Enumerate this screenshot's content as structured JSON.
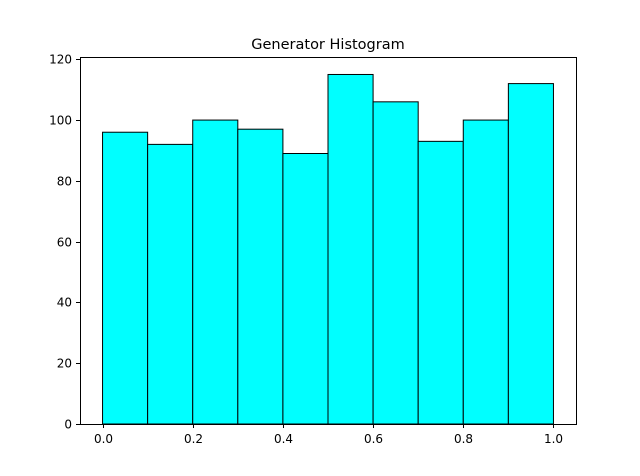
{
  "chart_data": {
    "type": "bar",
    "title": "Generator Histogram",
    "xlabel": "",
    "ylabel": "",
    "bin_edges": [
      0.0,
      0.1,
      0.2,
      0.3,
      0.4,
      0.5,
      0.6,
      0.7,
      0.8,
      0.9,
      1.0
    ],
    "values": [
      96,
      92,
      100,
      97,
      89,
      115,
      106,
      93,
      100,
      112
    ],
    "xlim": [
      -0.05,
      1.05
    ],
    "ylim": [
      0,
      120.75
    ],
    "xticks": [
      "0.0",
      "0.2",
      "0.4",
      "0.6",
      "0.8",
      "1.0"
    ],
    "xtick_values": [
      0.0,
      0.2,
      0.4,
      0.6,
      0.8,
      1.0
    ],
    "yticks": [
      "0",
      "20",
      "40",
      "60",
      "80",
      "100",
      "120"
    ],
    "ytick_values": [
      0,
      20,
      40,
      60,
      80,
      100,
      120
    ],
    "bar_color": "#00ffff",
    "edge_color": "#000000",
    "grid": false,
    "legend": "none"
  }
}
